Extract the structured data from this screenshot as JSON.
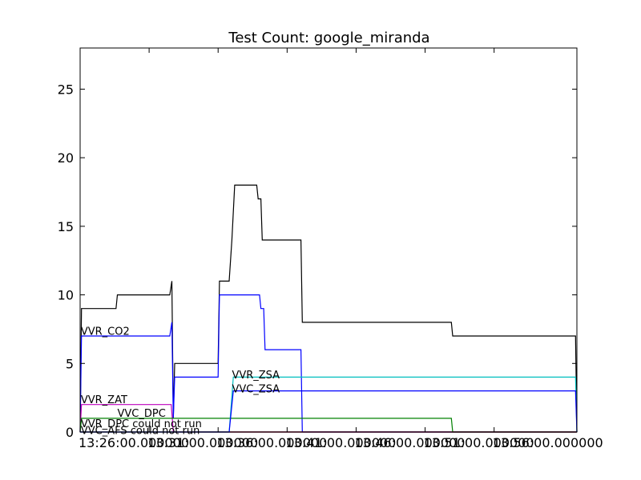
{
  "chart_data": {
    "type": "line",
    "title": "Test Count: google_miranda",
    "xlabel": "",
    "ylabel": "",
    "xlim": [
      0,
      36
    ],
    "ylim": [
      0,
      28
    ],
    "y_ticks": [
      0,
      5,
      10,
      15,
      20,
      25
    ],
    "x_ticks": [
      {
        "x": 0,
        "label": "13:26:00.000000"
      },
      {
        "x": 5,
        "label": "13:31:00.000000"
      },
      {
        "x": 10,
        "label": "13:36:00.000000"
      },
      {
        "x": 15,
        "label": "13:41:00.000000"
      },
      {
        "x": 20,
        "label": "13:46:00.000000"
      },
      {
        "x": 25,
        "label": "13:51:00.000000"
      },
      {
        "x": 30,
        "label": "13:56:00.000000"
      }
    ],
    "grid": false,
    "series": [
      {
        "name": "",
        "color": "#000000",
        "label_at": null,
        "x": [
          0,
          0.1,
          2.6,
          2.7,
          6.5,
          6.65,
          6.75,
          6.85,
          10.0,
          10.1,
          10.8,
          11.0,
          11.2,
          12.8,
          12.9,
          13.1,
          13.2,
          16.0,
          16.1,
          26.9,
          27.0,
          35.9,
          36.0
        ],
        "y": [
          0,
          9,
          9,
          10,
          10,
          11,
          1,
          5,
          5,
          11,
          11,
          14,
          18,
          18,
          17,
          17,
          14,
          14,
          8,
          8,
          7,
          7,
          0
        ]
      },
      {
        "name": "VVR_CO2",
        "color": "#0000ff",
        "label_at": [
          0.05,
          7.1
        ],
        "x": [
          0,
          0.1,
          6.5,
          6.65,
          6.75,
          6.85,
          10.0,
          10.1,
          13.0,
          13.1,
          13.3,
          13.4,
          16.0,
          16.1,
          36.0
        ],
        "y": [
          0,
          7,
          7,
          8,
          1,
          4,
          4,
          10,
          10,
          9,
          9,
          6,
          6,
          0,
          0
        ]
      },
      {
        "name": "VVR_ZAT",
        "color": "#bf00bf",
        "label_at": [
          0.05,
          2.1
        ],
        "x": [
          0,
          0.1,
          6.6,
          6.75,
          36.0
        ],
        "y": [
          0,
          2,
          2,
          0,
          0
        ]
      },
      {
        "name": "VVC_DPC",
        "color": "#008000",
        "label_at": [
          2.7,
          1.1
        ],
        "x": [
          0,
          0.1,
          26.9,
          27.0,
          36.0
        ],
        "y": [
          0,
          1,
          1,
          0,
          0
        ]
      },
      {
        "name": "VVR_DPC could not run",
        "color": "#ff0000",
        "label_at": [
          0.05,
          0.35
        ],
        "x": [
          0,
          36.0
        ],
        "y": [
          0,
          0
        ]
      },
      {
        "name": "VVC_AFS could not run",
        "color": "#000000",
        "label_at": [
          0.05,
          -0.15
        ],
        "x": [
          0,
          36.0
        ],
        "y": [
          0,
          0
        ]
      },
      {
        "name": "VVR_ZSA",
        "color": "#00bfbf",
        "label_at": [
          11.0,
          3.9
        ],
        "x": [
          0,
          10.8,
          11.1,
          35.9,
          36.0
        ],
        "y": [
          0,
          0,
          4,
          4,
          0
        ]
      },
      {
        "name": "VVC_ZSA",
        "color": "#0000ff",
        "label_at": [
          11.0,
          2.9
        ],
        "x": [
          0,
          10.8,
          11.1,
          35.9,
          36.0
        ],
        "y": [
          0,
          0,
          3,
          3,
          0
        ]
      }
    ]
  }
}
